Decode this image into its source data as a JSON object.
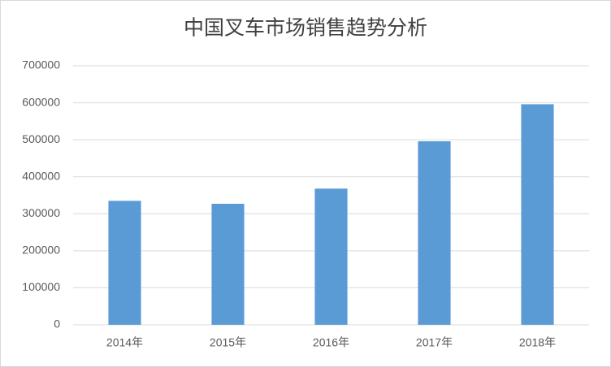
{
  "chart_data": {
    "type": "bar",
    "title": "中国叉车市场销售趋势分析",
    "categories": [
      "2014年",
      "2015年",
      "2016年",
      "2017年",
      "2018年"
    ],
    "values": [
      335000,
      327000,
      368000,
      496000,
      596000
    ],
    "color": "#5b9bd5",
    "ylim": [
      0,
      700000
    ],
    "yticks": [
      0,
      100000,
      200000,
      300000,
      400000,
      500000,
      600000,
      700000
    ],
    "grid": true
  }
}
